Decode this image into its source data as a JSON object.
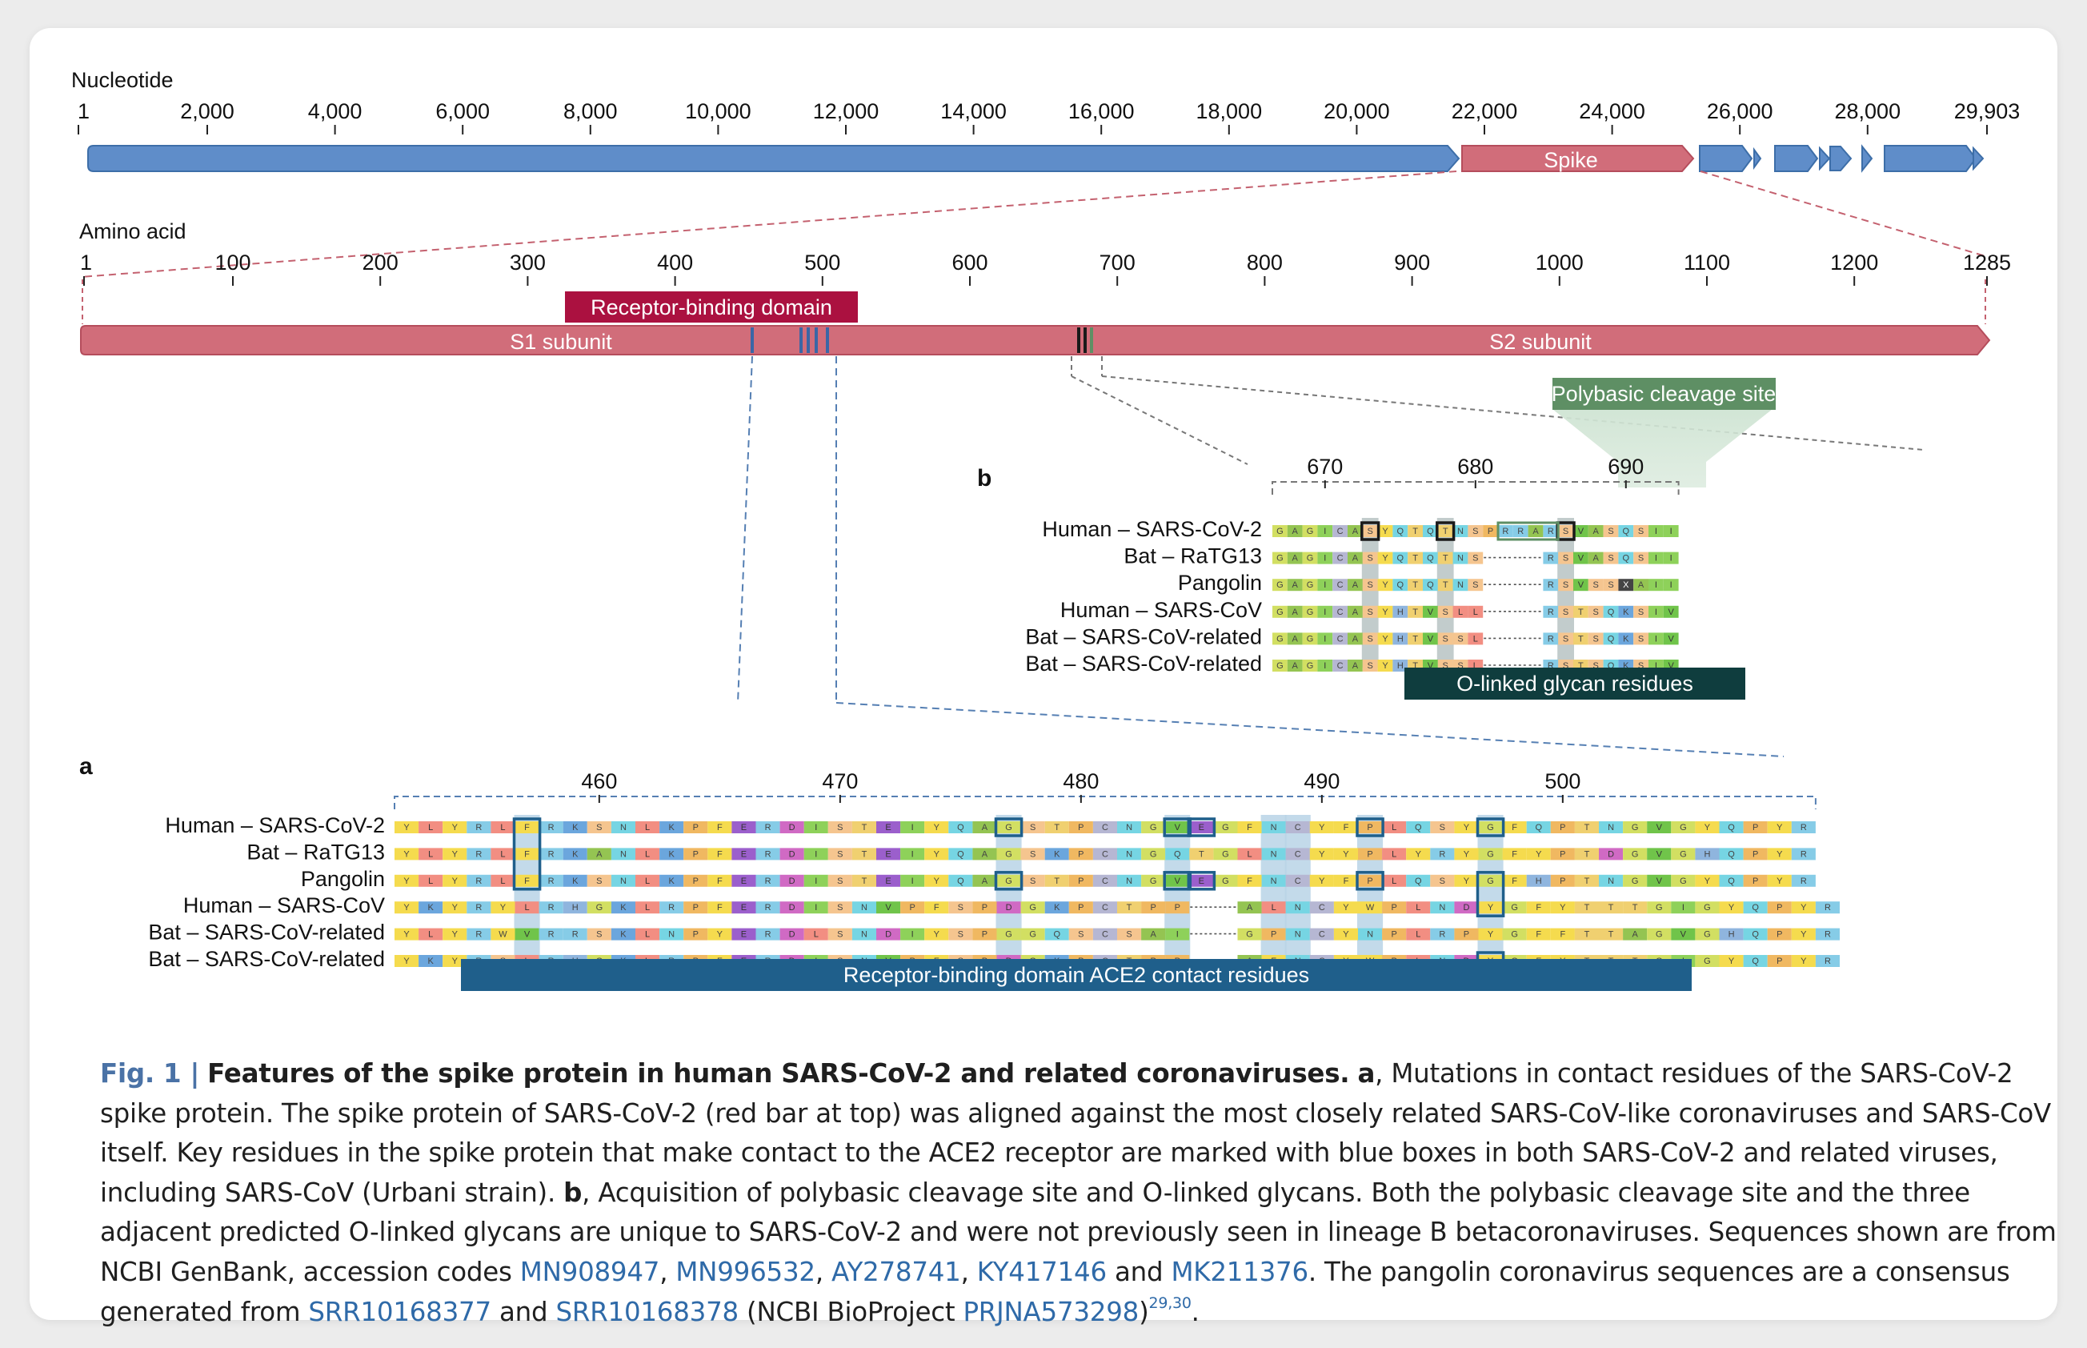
{
  "nucleotide": {
    "label": "Nucleotide",
    "ticks": [
      "1",
      "2,000",
      "4,000",
      "6,000",
      "8,000",
      "10,000",
      "12,000",
      "14,000",
      "16,000",
      "18,000",
      "20,000",
      "22,000",
      "24,000",
      "26,000",
      "28,000",
      "29,903"
    ],
    "spike_label": "Spike"
  },
  "amino_acid": {
    "label": "Amino acid",
    "ticks": [
      "1",
      "100",
      "200",
      "300",
      "400",
      "500",
      "600",
      "700",
      "800",
      "900",
      "1000",
      "1100",
      "1200",
      "1285"
    ],
    "rbd_label": "Receptor-binding domain",
    "s1_label": "S1 subunit",
    "s2_label": "S2 subunit"
  },
  "panel_b": {
    "letter": "b",
    "banner": "Polybasic cleavage site",
    "ticks": [
      "670",
      "680",
      "690"
    ],
    "species": [
      "Human – SARS-CoV-2",
      "Bat – RaTG13",
      "Pangolin",
      "Human – SARS-CoV",
      "Bat – SARS-CoV-related",
      "Bat – SARS-CoV-related"
    ],
    "sequences": [
      "GAGICASYQTQTNSPRRARSVASQSII",
      "GAGICASYQTQTNS----RSVASQSII",
      "GAGICASYQTQTNS----RSVSSXAII",
      "GAGICASYHTVSLL----RSTSQKSIV",
      "GAGICASYHTVSSL----RSTSQKSIV",
      "GAGICASYHTVSSL----RSTSQKSIV"
    ],
    "glycan_label": "O-linked glycan residues"
  },
  "panel_a": {
    "letter": "a",
    "ticks": [
      "460",
      "470",
      "480",
      "490",
      "500"
    ],
    "species": [
      "Human – SARS-CoV-2",
      "Bat – RaTG13",
      "Pangolin",
      "Human – SARS-CoV",
      "Bat – SARS-CoV-related",
      "Bat – SARS-CoV-related"
    ],
    "sequences": [
      "YLYRLFRKSNLKPFERDISTEIYQAGSTPCNGVEGFNCYFPLQSYGFQPTNGVGYQPYR",
      "YLYRLFRKANLKPFERDISTEIYQAGSKPCNGQTGLNCYYPLYRYGFYPTDGVGHQPYR",
      "YLYRLFRKSNLKPFERDISTEIYQAGSTPCNGVEGFNCYFPLQSYGFHPTNGVGYQPYR",
      "YKYRYLRHGKLRPFERDISNVPFSPDGKPCTPP--ALNCYWPLNDYGFYTTTGIGYQPYR",
      "YLYRWVRRSKLNPYERDLSNDIYSPGGQSCSAI--GPNCYNPLRPYGFFTTAGVGHQPYR",
      "YKYRSLRHGKLRPFERDISNVPFSPDGKPCTPP--AFNCYWPLNDYGFYTTTGIGYQPYR"
    ],
    "contact_label": "Receptor-binding domain ACE2 contact residues"
  },
  "caption": {
    "fig_label": "Fig. 1 |",
    "title": "Features of the spike protein in human SARS-CoV-2 and related coronaviruses.",
    "a_label": "a",
    "a_text": ", Mutations in contact residues of the SARS-CoV-2 spike protein. The spike protein of SARS-CoV-2 (red bar at top) was aligned against the most closely related SARS-CoV-like coronaviruses and SARS-CoV itself. Key residues in the spike protein that make contact to the ACE2 receptor are marked with blue boxes in both SARS-CoV-2 and related viruses, including SARS-CoV (Urbani strain).",
    "b_label": "b",
    "b_text": ", Acquisition of polybasic cleavage site and O-linked glycans. Both the polybasic cleavage site and the three adjacent predicted O-linked glycans are unique to SARS-CoV-2 and were not previously seen in lineage B betacoronaviruses. Sequences shown are from NCBI GenBank, accession codes",
    "acc1": "MN908947",
    "acc2": "MN996532",
    "acc3": "AY278741",
    "acc4": "KY417146",
    "and1": "and",
    "acc5": "MK211376",
    "pangolin_text": ". The pangolin coronavirus sequences are a consensus generated from",
    "srr1": "SRR10168377",
    "and2": "and",
    "srr2": "SRR10168378",
    "bioproject_text": "(NCBI BioProject",
    "prj": "PRJNA573298",
    "refs": "29,30",
    "end": "."
  },
  "colors": {
    "genome_blue": "#5f8dc9",
    "spike_red": "#d16d7a",
    "rbd_label_bg": "#ab1140",
    "contact_bar": "#1f5f8b",
    "glycan_bar": "#0f3d3e",
    "cleavage_green": "#5e8f64"
  }
}
